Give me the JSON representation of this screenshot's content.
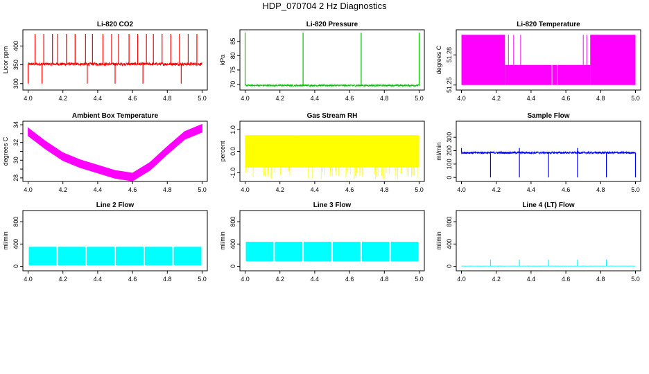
{
  "page_title": "HDP_070704  2 Hz Diagnostics",
  "chart_data": [
    {
      "type": "line",
      "title": "Li-820 CO2",
      "ylabel": "Licor ppm",
      "color": "#ff0000",
      "xlim": [
        3.97,
        5.03
      ],
      "ylim": [
        283,
        443
      ],
      "x_ticks": [
        4.0,
        4.2,
        4.4,
        4.6,
        4.8,
        5.0
      ],
      "x_tick_labels": [
        "4.0",
        "4.2",
        "4.4",
        "4.6",
        "4.8",
        "5.0"
      ],
      "y_ticks": [
        300,
        350,
        400
      ],
      "y_tick_labels": [
        "300",
        "350",
        "400"
      ],
      "series": [
        {
          "kind": "noise",
          "base": 352,
          "amp": 4,
          "spikes_up": [
            4.04,
            4.09,
            4.14,
            4.17,
            4.22,
            4.27,
            4.33,
            4.37,
            4.43,
            4.48,
            4.52,
            4.58,
            4.63,
            4.68,
            4.72,
            4.77,
            4.82,
            4.87,
            4.92,
            4.97
          ],
          "spike_up_value": 432,
          "spikes_down": [
            4.0,
            4.08,
            4.34,
            4.5,
            4.66,
            4.88
          ],
          "spike_down_value": 300
        }
      ]
    },
    {
      "type": "line",
      "title": "Li-820 Pressure",
      "ylabel": "kPa",
      "color": "#00c000",
      "xlim": [
        3.97,
        5.03
      ],
      "ylim": [
        68,
        89
      ],
      "x_ticks": [
        4.0,
        4.2,
        4.4,
        4.6,
        4.8,
        5.0
      ],
      "x_tick_labels": [
        "4.0",
        "4.2",
        "4.4",
        "4.6",
        "4.8",
        "5.0"
      ],
      "y_ticks": [
        70,
        75,
        80,
        85
      ],
      "y_tick_labels": [
        "70",
        "75",
        "80",
        "85"
      ],
      "series": [
        {
          "kind": "noise",
          "base": 69.6,
          "amp": 0.3,
          "spikes_up": [
            4.0,
            4.333,
            4.667,
            5.0
          ],
          "spike_up_value": 88
        }
      ]
    },
    {
      "type": "line",
      "title": "Li-820 Temperature",
      "ylabel": "degrees C",
      "color": "#ff00ff",
      "xlim": [
        3.97,
        5.03
      ],
      "ylim": [
        51.245,
        51.305
      ],
      "x_ticks": [
        4.0,
        4.2,
        4.4,
        4.6,
        4.8,
        5.0
      ],
      "x_tick_labels": [
        "4.0",
        "4.2",
        "4.4",
        "4.6",
        "4.8",
        "5.0"
      ],
      "y_ticks": [
        51.25,
        51.28
      ],
      "y_tick_labels": [
        "51.25",
        "51.28"
      ],
      "series": [
        {
          "kind": "quantized",
          "low": 51.25,
          "mid": 51.27,
          "high": 51.3,
          "high_until": 4.25,
          "high_from": 4.74
        }
      ]
    },
    {
      "type": "line",
      "title": "Ambient Box Temperature",
      "ylabel": "degrees C",
      "color": "#ff00ff",
      "xlim": [
        3.97,
        5.03
      ],
      "ylim": [
        27.6,
        34.4
      ],
      "x_ticks": [
        4.0,
        4.2,
        4.4,
        4.6,
        4.8,
        5.0
      ],
      "x_tick_labels": [
        "4.0",
        "4.2",
        "4.4",
        "4.6",
        "4.8",
        "5.0"
      ],
      "y_ticks": [
        28,
        29,
        30,
        31,
        32,
        33,
        34
      ],
      "y_tick_labels": [
        "28",
        "",
        "30",
        "",
        "32",
        "",
        "34"
      ],
      "series": [
        {
          "kind": "curve",
          "points": [
            [
              4.0,
              33.2
            ],
            [
              4.1,
              31.7
            ],
            [
              4.2,
              30.4
            ],
            [
              4.3,
              29.6
            ],
            [
              4.4,
              29.0
            ],
            [
              4.5,
              28.4
            ],
            [
              4.6,
              28.1
            ],
            [
              4.7,
              29.3
            ],
            [
              4.8,
              31.1
            ],
            [
              4.9,
              32.8
            ],
            [
              5.0,
              33.6
            ]
          ],
          "amp": 0.45
        }
      ]
    },
    {
      "type": "line",
      "title": "Gas Stream RH",
      "ylabel": "percent",
      "color": "#ffff00",
      "xlim": [
        3.97,
        5.03
      ],
      "ylim": [
        -1.4,
        1.4
      ],
      "x_ticks": [
        4.0,
        4.2,
        4.4,
        4.6,
        4.8,
        5.0
      ],
      "x_tick_labels": [
        "4.0",
        "4.2",
        "4.4",
        "4.6",
        "4.8",
        "5.0"
      ],
      "y_ticks": [
        -1.0,
        0.0,
        1.0
      ],
      "y_tick_labels": [
        "-1.0",
        "0.0",
        "1.0"
      ],
      "series": [
        {
          "kind": "noise",
          "base": 0.0,
          "amp": 0.75,
          "spikes_down_random": true,
          "spike_down_value": -1.3
        }
      ]
    },
    {
      "type": "line",
      "title": "Sample Flow",
      "ylabel": "ml/min",
      "color": "#0000ff",
      "xlim": [
        3.97,
        5.03
      ],
      "ylim": [
        -30,
        420
      ],
      "x_ticks": [
        4.0,
        4.2,
        4.4,
        4.6,
        4.8,
        5.0
      ],
      "x_tick_labels": [
        "4.0",
        "4.2",
        "4.4",
        "4.6",
        "4.8",
        "5.0"
      ],
      "y_ticks": [
        0,
        100,
        200,
        300
      ],
      "y_tick_labels": [
        "0",
        "100",
        "200",
        "300"
      ],
      "series": [
        {
          "kind": "noise",
          "base": 185,
          "amp": 8,
          "spikes_down": [
            4.167,
            4.333,
            4.5,
            4.667,
            4.833,
            5.0
          ],
          "spike_down_value": 0,
          "spikes_up": [
            4.0,
            4.333,
            4.667
          ],
          "spike_up_value": 220
        }
      ]
    },
    {
      "type": "area",
      "title": "Line 2 Flow",
      "ylabel": "ml/min",
      "color": "#00ffff",
      "xlim": [
        3.97,
        5.03
      ],
      "ylim": [
        -80,
        1000
      ],
      "x_ticks": [
        4.0,
        4.2,
        4.4,
        4.6,
        4.8,
        5.0
      ],
      "x_tick_labels": [
        "4.0",
        "4.2",
        "4.4",
        "4.6",
        "4.8",
        "5.0"
      ],
      "y_ticks": [
        0,
        400,
        800
      ],
      "y_tick_labels": [
        "0",
        "400",
        "800"
      ],
      "series": [
        {
          "kind": "band",
          "low": 20,
          "high": 350,
          "gaps": [
            4.167,
            4.333,
            4.5,
            4.667,
            4.833
          ]
        }
      ]
    },
    {
      "type": "area",
      "title": "Line 3 Flow",
      "ylabel": "ml/min",
      "color": "#00ffff",
      "xlim": [
        3.97,
        5.03
      ],
      "ylim": [
        -80,
        1000
      ],
      "x_ticks": [
        4.0,
        4.2,
        4.4,
        4.6,
        4.8,
        5.0
      ],
      "x_tick_labels": [
        "4.0",
        "4.2",
        "4.4",
        "4.6",
        "4.8",
        "5.0"
      ],
      "y_ticks": [
        0,
        400,
        800
      ],
      "y_tick_labels": [
        "0",
        "400",
        "800"
      ],
      "series": [
        {
          "kind": "band",
          "low": 90,
          "high": 440,
          "gaps": [
            4.167,
            4.333,
            4.5,
            4.667,
            4.833
          ]
        }
      ]
    },
    {
      "type": "line",
      "title": "Line 4 (LT) Flow",
      "ylabel": "ml/min",
      "color": "#00ffff",
      "xlim": [
        3.97,
        5.03
      ],
      "ylim": [
        -80,
        1000
      ],
      "x_ticks": [
        4.0,
        4.2,
        4.4,
        4.6,
        4.8,
        5.0
      ],
      "x_tick_labels": [
        "4.0",
        "4.2",
        "4.4",
        "4.6",
        "4.8",
        "5.0"
      ],
      "y_ticks": [
        0,
        400,
        800
      ],
      "y_tick_labels": [
        "0",
        "400",
        "800"
      ],
      "series": [
        {
          "kind": "noise",
          "base": 5,
          "amp": 2,
          "spikes_up": [
            4.167,
            4.333,
            4.5,
            4.667,
            4.833
          ],
          "spike_up_value": 120
        }
      ]
    }
  ]
}
